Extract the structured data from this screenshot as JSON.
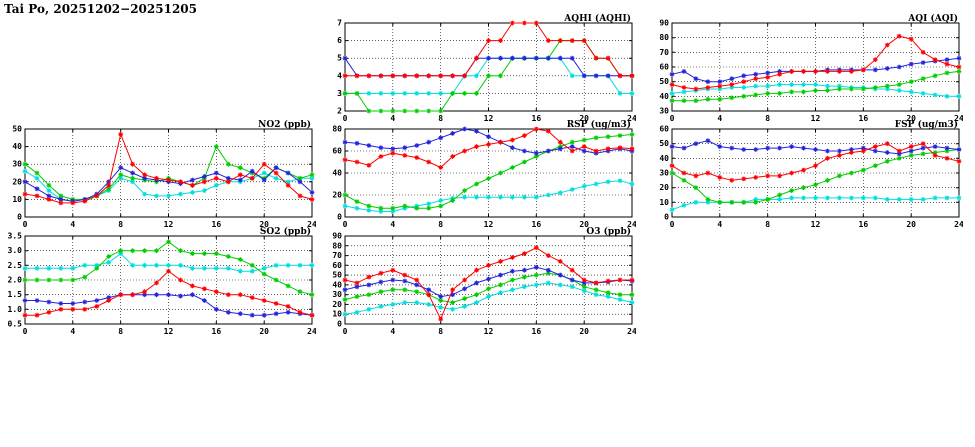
{
  "title": "Tai Po, 20251202−20251205",
  "chart_data": [
    {
      "id": "aqhi",
      "type": "line",
      "title": "AQHI (AQHI)",
      "xlim": [
        0,
        24
      ],
      "xticks": [
        0,
        4,
        8,
        12,
        16,
        20,
        24
      ],
      "xtick_labels": [
        "0",
        "4",
        "8",
        "12",
        "16",
        "20",
        "24"
      ],
      "ylim": [
        2,
        7
      ],
      "yticks": [
        2,
        3,
        4,
        5,
        6,
        7
      ],
      "ytick_labels": [
        "2",
        "3",
        "4",
        "5",
        "6",
        "7"
      ],
      "grid": true,
      "series": [
        {
          "name": "cyan",
          "color": "#00dddd",
          "values": [
            3,
            3,
            3,
            3,
            3,
            3,
            3,
            3,
            3,
            3,
            4,
            4,
            5,
            5,
            5,
            5,
            5,
            5,
            5,
            4,
            4,
            4,
            4,
            3,
            3
          ]
        },
        {
          "name": "green",
          "color": "#00cc00",
          "values": [
            3,
            3,
            2,
            2,
            2,
            2,
            2,
            2,
            2,
            3,
            3,
            3,
            4,
            4,
            5,
            5,
            5,
            5,
            6,
            6,
            6,
            5,
            5,
            4,
            4
          ]
        },
        {
          "name": "blue",
          "color": "#2222dd",
          "values": [
            5,
            4,
            4,
            4,
            4,
            4,
            4,
            4,
            4,
            4,
            4,
            5,
            5,
            5,
            5,
            5,
            5,
            5,
            5,
            5,
            4,
            4,
            4,
            4,
            4
          ]
        },
        {
          "name": "red",
          "color": "#ff0000",
          "values": [
            4,
            4,
            4,
            4,
            4,
            4,
            4,
            4,
            4,
            4,
            4,
            5,
            6,
            6,
            7,
            7,
            7,
            6,
            6,
            6,
            6,
            5,
            5,
            4,
            4
          ]
        }
      ]
    },
    {
      "id": "aqi",
      "type": "line",
      "title": "AQI (AQI)",
      "xlim": [
        0,
        24
      ],
      "xticks": [
        0,
        4,
        8,
        12,
        16,
        20,
        24
      ],
      "xtick_labels": [
        "0",
        "4",
        "8",
        "12",
        "16",
        "20",
        "24"
      ],
      "ylim": [
        30,
        90
      ],
      "yticks": [
        30,
        40,
        50,
        60,
        70,
        80,
        90
      ],
      "ytick_labels": [
        "30",
        "40",
        "50",
        "60",
        "70",
        "80",
        "90"
      ],
      "grid": true,
      "series": [
        {
          "name": "cyan",
          "color": "#00dddd",
          "values": [
            42,
            43,
            44,
            45,
            45,
            46,
            46,
            47,
            47,
            48,
            48,
            48,
            48,
            47,
            47,
            46,
            46,
            45,
            45,
            44,
            43,
            42,
            41,
            40,
            40
          ]
        },
        {
          "name": "green",
          "color": "#00cc00",
          "values": [
            37,
            37,
            37,
            38,
            38,
            39,
            40,
            41,
            42,
            42,
            43,
            43,
            44,
            44,
            45,
            45,
            45,
            46,
            47,
            48,
            50,
            52,
            54,
            56,
            57
          ]
        },
        {
          "name": "blue",
          "color": "#2222dd",
          "values": [
            55,
            57,
            52,
            50,
            50,
            52,
            54,
            55,
            56,
            57,
            57,
            57,
            57,
            58,
            58,
            58,
            58,
            58,
            59,
            60,
            62,
            63,
            64,
            65,
            66
          ]
        },
        {
          "name": "red",
          "color": "#ff0000",
          "values": [
            48,
            46,
            45,
            46,
            47,
            48,
            50,
            52,
            53,
            55,
            57,
            57,
            57,
            57,
            57,
            57,
            58,
            65,
            75,
            81,
            79,
            70,
            65,
            62,
            60
          ]
        }
      ]
    },
    {
      "id": "no2",
      "type": "line",
      "title": "NO2 (ppb)",
      "xlim": [
        0,
        24
      ],
      "xticks": [
        0,
        4,
        8,
        12,
        16,
        20,
        24
      ],
      "xtick_labels": [
        "0",
        "4",
        "8",
        "12",
        "16",
        "20",
        "24"
      ],
      "ylim": [
        0,
        50
      ],
      "yticks": [
        0,
        10,
        20,
        30,
        40,
        50
      ],
      "ytick_labels": [
        "0",
        "10",
        "20",
        "30",
        "40",
        "50"
      ],
      "grid": true,
      "series": [
        {
          "name": "cyan",
          "color": "#00dddd",
          "values": [
            26,
            22,
            15,
            10,
            9,
            10,
            12,
            15,
            22,
            20,
            13,
            12,
            12,
            13,
            14,
            15,
            18,
            20,
            20,
            22,
            25,
            22,
            20,
            22,
            22
          ]
        },
        {
          "name": "green",
          "color": "#00cc00",
          "values": [
            30,
            25,
            18,
            12,
            10,
            10,
            12,
            16,
            24,
            22,
            21,
            20,
            22,
            20,
            18,
            22,
            40,
            30,
            28,
            25,
            22,
            28,
            25,
            22,
            24
          ]
        },
        {
          "name": "blue",
          "color": "#2222dd",
          "values": [
            20,
            16,
            12,
            10,
            9,
            10,
            13,
            20,
            28,
            25,
            22,
            21,
            20,
            19,
            21,
            23,
            25,
            22,
            21,
            26,
            21,
            28,
            25,
            20,
            14
          ]
        },
        {
          "name": "red",
          "color": "#ff0000",
          "values": [
            13,
            12,
            10,
            8,
            8,
            9,
            12,
            18,
            47,
            30,
            24,
            22,
            21,
            20,
            18,
            20,
            22,
            20,
            24,
            22,
            30,
            25,
            18,
            12,
            10
          ]
        }
      ]
    },
    {
      "id": "rsp",
      "type": "line",
      "title": "RSP (ug/m3)",
      "xlim": [
        0,
        24
      ],
      "xticks": [
        0,
        4,
        8,
        12,
        16,
        20,
        24
      ],
      "xtick_labels": [
        "0",
        "4",
        "8",
        "12",
        "16",
        "20",
        "24"
      ],
      "ylim": [
        0,
        80
      ],
      "yticks": [
        0,
        20,
        40,
        60,
        80
      ],
      "ytick_labels": [
        "0",
        "20",
        "40",
        "60",
        "80"
      ],
      "grid": true,
      "series": [
        {
          "name": "cyan",
          "color": "#00dddd",
          "values": [
            10,
            8,
            6,
            5,
            5,
            8,
            10,
            12,
            15,
            17,
            18,
            18,
            18,
            18,
            18,
            18,
            18,
            20,
            22,
            25,
            28,
            30,
            32,
            33,
            30
          ]
        },
        {
          "name": "green",
          "color": "#00cc00",
          "values": [
            20,
            14,
            10,
            8,
            8,
            10,
            8,
            8,
            10,
            15,
            24,
            30,
            35,
            40,
            45,
            50,
            55,
            60,
            64,
            68,
            70,
            72,
            73,
            74,
            75
          ]
        },
        {
          "name": "blue",
          "color": "#2222dd",
          "values": [
            68,
            67,
            65,
            63,
            62,
            63,
            65,
            68,
            72,
            76,
            80,
            78,
            73,
            68,
            63,
            60,
            58,
            60,
            62,
            64,
            60,
            58,
            60,
            62,
            60
          ]
        },
        {
          "name": "red",
          "color": "#ff0000",
          "values": [
            52,
            50,
            47,
            55,
            58,
            56,
            54,
            50,
            45,
            55,
            60,
            64,
            66,
            68,
            70,
            74,
            80,
            78,
            68,
            60,
            64,
            60,
            62,
            63,
            62
          ]
        }
      ]
    },
    {
      "id": "fsp",
      "type": "line",
      "title": "FSP (ug/m3)",
      "xlim": [
        0,
        24
      ],
      "xticks": [
        0,
        4,
        8,
        12,
        16,
        20,
        24
      ],
      "xtick_labels": [
        "0",
        "4",
        "8",
        "12",
        "16",
        "20",
        "24"
      ],
      "ylim": [
        0,
        60
      ],
      "yticks": [
        0,
        10,
        20,
        30,
        40,
        50,
        60
      ],
      "ytick_labels": [
        "0",
        "10",
        "20",
        "30",
        "40",
        "50",
        "60"
      ],
      "grid": true,
      "series": [
        {
          "name": "cyan",
          "color": "#00dddd",
          "values": [
            5,
            8,
            10,
            10,
            10,
            10,
            10,
            12,
            12,
            12,
            13,
            13,
            13,
            13,
            13,
            13,
            13,
            13,
            12,
            12,
            12,
            12,
            13,
            13,
            13
          ]
        },
        {
          "name": "green",
          "color": "#00cc00",
          "values": [
            30,
            25,
            20,
            12,
            10,
            10,
            10,
            10,
            12,
            15,
            18,
            20,
            22,
            25,
            28,
            30,
            32,
            35,
            38,
            40,
            42,
            43,
            44,
            45,
            46
          ]
        },
        {
          "name": "blue",
          "color": "#2222dd",
          "values": [
            48,
            47,
            50,
            52,
            48,
            47,
            46,
            46,
            47,
            47,
            48,
            47,
            46,
            45,
            45,
            46,
            47,
            45,
            44,
            43,
            45,
            47,
            48,
            47,
            46
          ]
        },
        {
          "name": "red",
          "color": "#ff0000",
          "values": [
            35,
            30,
            28,
            30,
            27,
            25,
            26,
            27,
            28,
            28,
            30,
            32,
            35,
            40,
            42,
            44,
            45,
            48,
            50,
            45,
            48,
            50,
            42,
            40,
            38
          ]
        }
      ]
    },
    {
      "id": "so2",
      "type": "line",
      "title": "SO2 (ppb)",
      "xlim": [
        0,
        24
      ],
      "xticks": [
        0,
        4,
        8,
        12,
        16,
        20,
        24
      ],
      "xtick_labels": [
        "0",
        "4",
        "8",
        "12",
        "16",
        "20",
        "24"
      ],
      "ylim": [
        0.5,
        3.5
      ],
      "yticks": [
        0.5,
        1.0,
        1.5,
        2.0,
        2.5,
        3.0,
        3.5
      ],
      "ytick_labels": [
        "0.5",
        "1.0",
        "1.5",
        "2.0",
        "2.5",
        "3.0",
        "3.5"
      ],
      "grid": true,
      "series": [
        {
          "name": "cyan",
          "color": "#00dddd",
          "values": [
            2.4,
            2.4,
            2.4,
            2.4,
            2.4,
            2.5,
            2.5,
            2.6,
            2.9,
            2.5,
            2.5,
            2.5,
            2.5,
            2.5,
            2.4,
            2.4,
            2.4,
            2.4,
            2.3,
            2.3,
            2.4,
            2.5,
            2.5,
            2.5,
            2.5
          ]
        },
        {
          "name": "green",
          "color": "#00cc00",
          "values": [
            2.0,
            2.0,
            2.0,
            2.0,
            2.0,
            2.1,
            2.4,
            2.8,
            3.0,
            3.0,
            3.0,
            3.0,
            3.3,
            3.0,
            2.9,
            2.9,
            2.9,
            2.8,
            2.7,
            2.5,
            2.2,
            2.0,
            1.8,
            1.6,
            1.5
          ]
        },
        {
          "name": "blue",
          "color": "#2222dd",
          "values": [
            1.3,
            1.3,
            1.25,
            1.2,
            1.2,
            1.25,
            1.3,
            1.4,
            1.5,
            1.5,
            1.5,
            1.5,
            1.5,
            1.45,
            1.5,
            1.3,
            1.0,
            0.9,
            0.85,
            0.8,
            0.8,
            0.85,
            0.9,
            0.85,
            0.8
          ]
        },
        {
          "name": "red",
          "color": "#ff0000",
          "values": [
            0.8,
            0.8,
            0.9,
            1.0,
            1.0,
            1.0,
            1.1,
            1.3,
            1.5,
            1.5,
            1.6,
            1.9,
            2.3,
            2.0,
            1.8,
            1.7,
            1.6,
            1.5,
            1.5,
            1.4,
            1.3,
            1.2,
            1.1,
            0.9,
            0.8
          ]
        }
      ]
    },
    {
      "id": "o3",
      "type": "line",
      "title": "O3 (ppb)",
      "xlim": [
        0,
        24
      ],
      "xticks": [
        0,
        4,
        8,
        12,
        16,
        20,
        24
      ],
      "xtick_labels": [
        "0",
        "4",
        "8",
        "12",
        "16",
        "20",
        "24"
      ],
      "ylim": [
        0,
        90
      ],
      "yticks": [
        0,
        10,
        20,
        30,
        40,
        50,
        60,
        70,
        80,
        90
      ],
      "ytick_labels": [
        "0",
        "10",
        "20",
        "30",
        "40",
        "50",
        "60",
        "70",
        "80",
        "90"
      ],
      "grid": true,
      "series": [
        {
          "name": "cyan",
          "color": "#00dddd",
          "values": [
            10,
            12,
            15,
            18,
            20,
            22,
            22,
            20,
            17,
            15,
            18,
            22,
            28,
            32,
            35,
            38,
            40,
            42,
            40,
            38,
            34,
            30,
            28,
            25,
            22
          ]
        },
        {
          "name": "green",
          "color": "#00cc00",
          "values": [
            25,
            28,
            30,
            33,
            35,
            35,
            33,
            30,
            24,
            22,
            26,
            30,
            36,
            40,
            45,
            48,
            50,
            52,
            50,
            45,
            38,
            35,
            32,
            30,
            30
          ]
        },
        {
          "name": "blue",
          "color": "#2222dd",
          "values": [
            35,
            38,
            40,
            43,
            45,
            44,
            40,
            35,
            28,
            30,
            36,
            42,
            46,
            50,
            54,
            55,
            58,
            55,
            50,
            45,
            42,
            42,
            43,
            45,
            44
          ]
        },
        {
          "name": "red",
          "color": "#ff0000",
          "values": [
            45,
            42,
            48,
            52,
            55,
            50,
            45,
            30,
            5,
            35,
            45,
            55,
            60,
            64,
            68,
            72,
            78,
            70,
            64,
            55,
            45,
            42,
            44,
            45,
            45
          ]
        }
      ]
    }
  ]
}
